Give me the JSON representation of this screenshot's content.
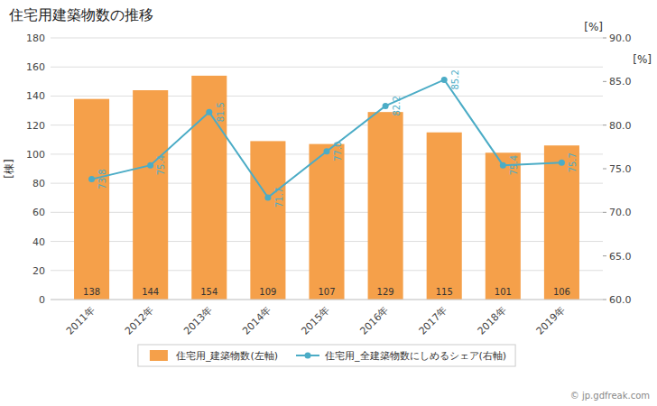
{
  "chart_data": {
    "type": "bar",
    "title": "住宅用建築物数の推移",
    "categories": [
      "2011年",
      "2012年",
      "2013年",
      "2014年",
      "2015年",
      "2016年",
      "2017年",
      "2018年",
      "2019年"
    ],
    "series": [
      {
        "name": "住宅用_建築物数(左軸)",
        "type": "bar",
        "color": "#F5A04A",
        "values": [
          138,
          144,
          154,
          109,
          107,
          129,
          115,
          101,
          106
        ]
      },
      {
        "name": "住宅用_全建築物数にしめるシェア(右軸)",
        "type": "line",
        "axis": "y2",
        "color": "#4BACC6",
        "marker": "circle",
        "values": [
          73.8,
          75.4,
          81.5,
          71.7,
          77.0,
          82.2,
          85.2,
          75.4,
          75.7
        ],
        "value_labels": [
          "73.8",
          "75.4",
          "81.5",
          "71.7",
          "77.0",
          "82.2",
          "85.2",
          "75.4",
          "75.7"
        ]
      }
    ],
    "ylabel": "[棟]",
    "y2label": "[%]",
    "ylim": [
      0,
      180
    ],
    "yticks": [
      0,
      20,
      40,
      60,
      80,
      100,
      120,
      140,
      160,
      180
    ],
    "y2lim": [
      60.0,
      90.0
    ],
    "y2ticks": [
      {
        "value": 60.0,
        "label": "60.0"
      },
      {
        "value": 65.0,
        "label": "65.0"
      },
      {
        "value": 70.0,
        "label": "70.0"
      },
      {
        "value": 75.0,
        "label": "75.0"
      },
      {
        "value": 80.0,
        "label": "80.0"
      },
      {
        "value": 85.0,
        "label": "85.0"
      },
      {
        "value": 90.0,
        "label": "90.0"
      }
    ],
    "grid": true,
    "legend": "bottom",
    "data_labels": true,
    "annotations": [
      "[%]",
      "© jp.gdfreak.com"
    ]
  }
}
